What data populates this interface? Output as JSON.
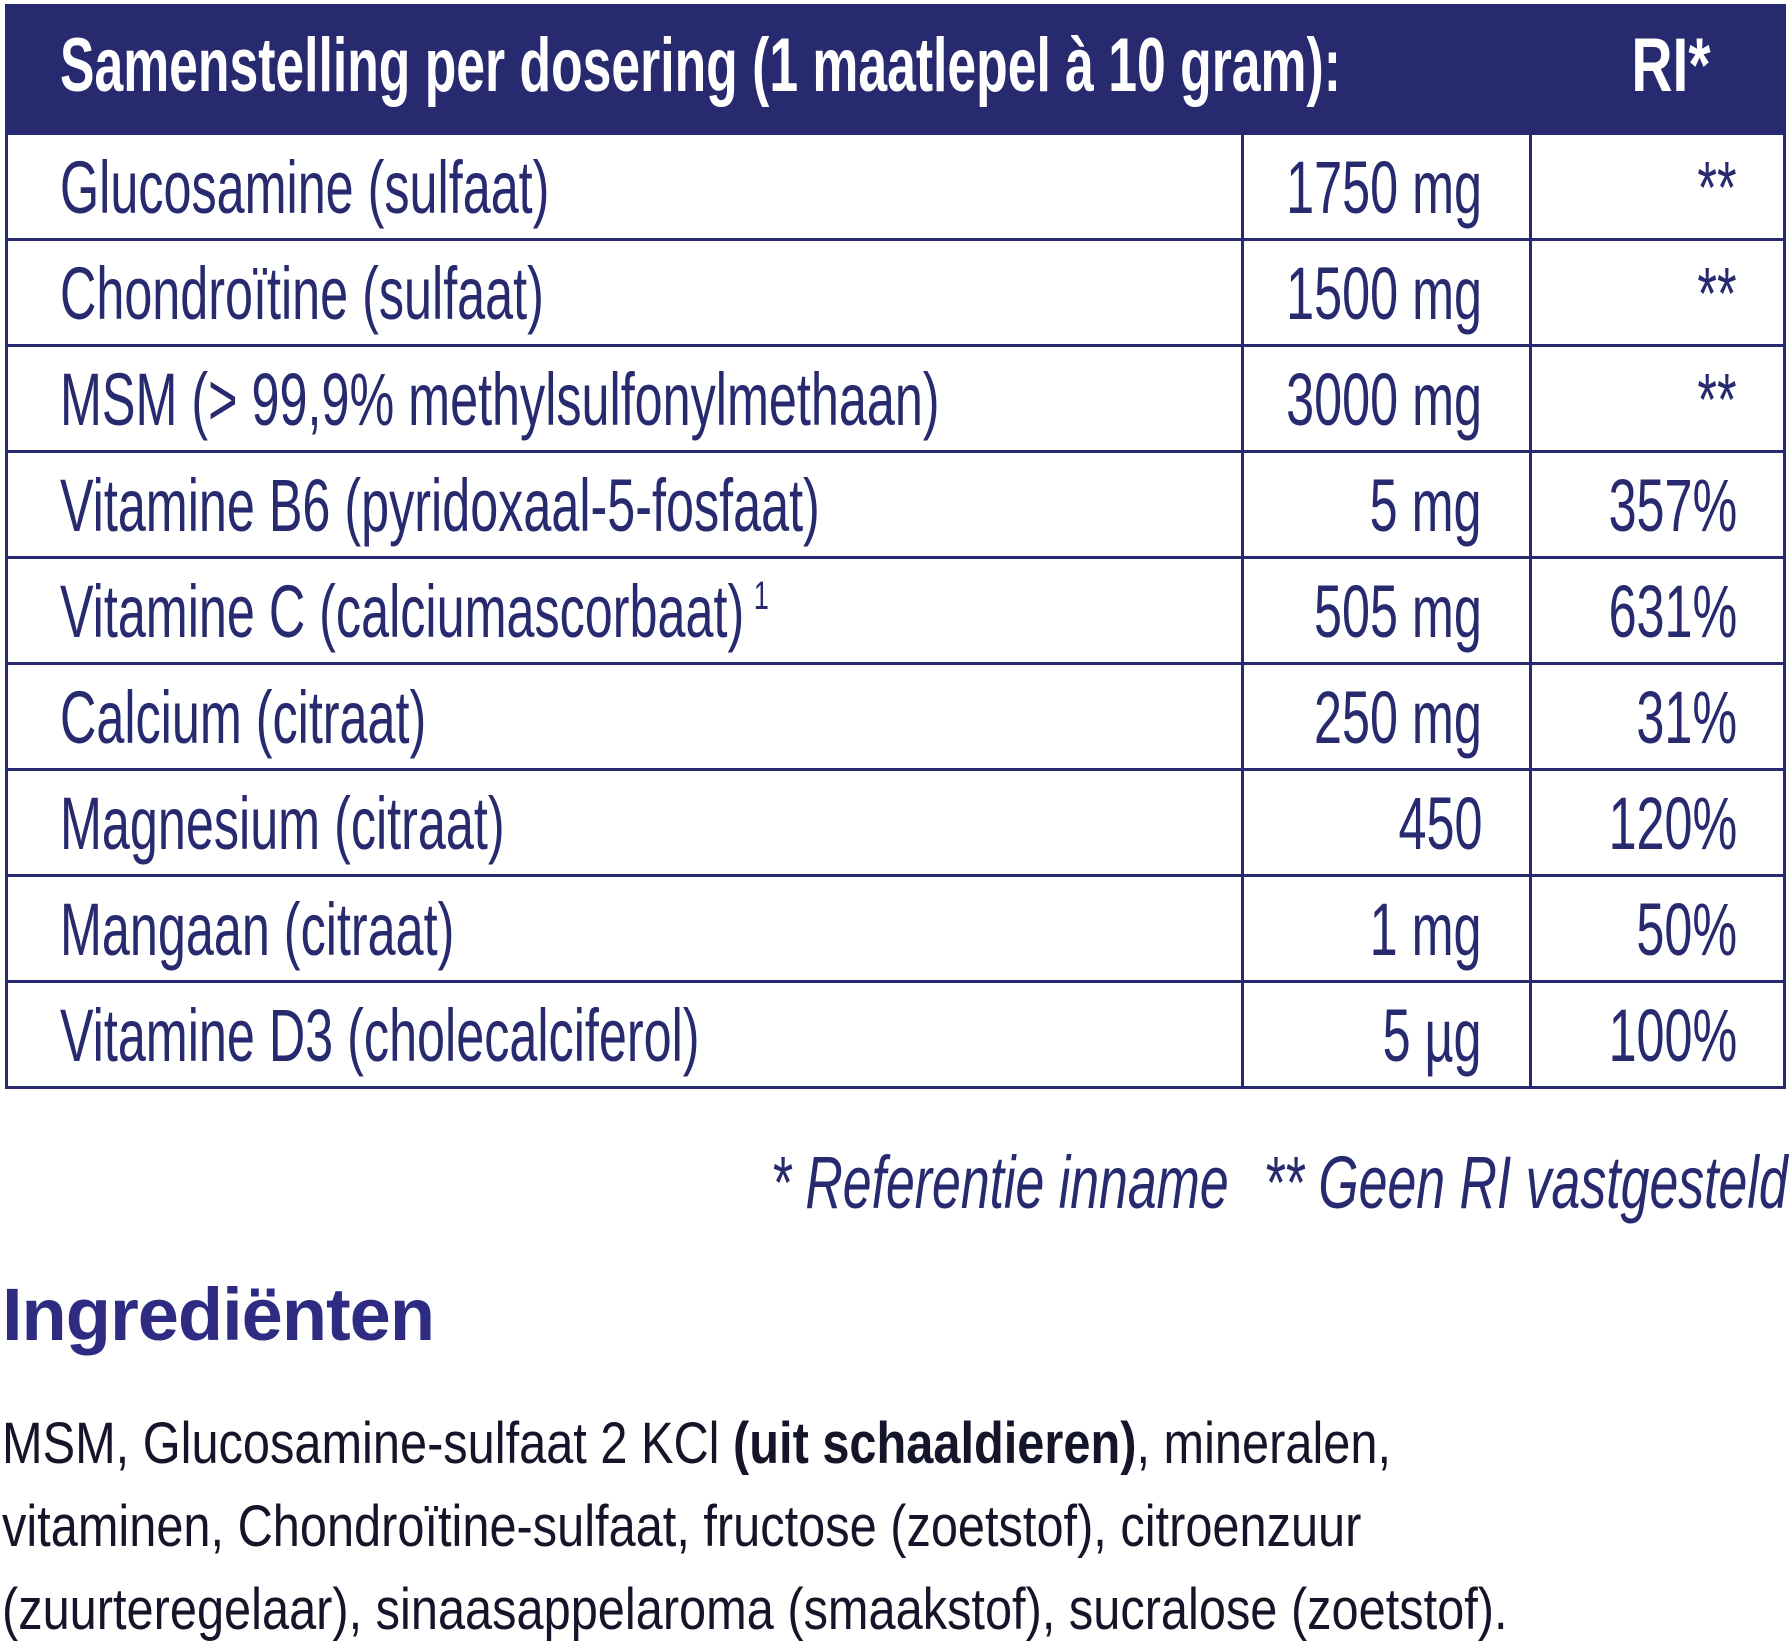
{
  "table": {
    "header": {
      "title": "Samenstelling per dosering (1 maatlepel à 10 gram):",
      "ri": "RI*"
    },
    "rows": [
      {
        "name": "Glucosamine (sulfaat)",
        "sup": "",
        "amount": "1750 mg",
        "ri": "**"
      },
      {
        "name": "Chondroïtine (sulfaat)",
        "sup": "",
        "amount": "1500 mg",
        "ri": "**"
      },
      {
        "name": "MSM (> 99,9% methylsulfonylmethaan)",
        "sup": "",
        "amount": "3000 mg",
        "ri": "**"
      },
      {
        "name": "Vitamine B6 (pyridoxaal-5-fosfaat)",
        "sup": "",
        "amount": "5 mg",
        "ri": "357%"
      },
      {
        "name": "Vitamine C (calciumascorbaat)",
        "sup": "1",
        "amount": "505 mg",
        "ri": "631%"
      },
      {
        "name": "Calcium (citraat)",
        "sup": "",
        "amount": "250 mg",
        "ri": "31%"
      },
      {
        "name": "Magnesium (citraat)",
        "sup": "",
        "amount": "450",
        "ri": "120%"
      },
      {
        "name": "Mangaan (citraat)",
        "sup": "",
        "amount": "1 mg",
        "ri": "50%"
      },
      {
        "name": "Vitamine D3 (cholecalciferol)",
        "sup": "",
        "amount": "5 µg",
        "ri": "100%"
      }
    ]
  },
  "footnotes": {
    "ri": "* Referentie inname",
    "no_ri": "** Geen RI vastgesteld"
  },
  "ingredients": {
    "heading": "Ingrediënten",
    "line1_a": "MSM, Glucosamine-sulfaat 2 KCl ",
    "line1_bold": "(uit schaaldieren)",
    "line1_b": ", mineralen,",
    "line2": "vitaminen, Chondroïtine-sulfaat, fructose (zoetstof), citroenzuur",
    "line3": "(zuurteregelaar), sinaasappelaroma (smaakstof), sucralose (zoetstof)."
  },
  "colors": {
    "navy": "#272a6e",
    "text": "#15152a"
  }
}
